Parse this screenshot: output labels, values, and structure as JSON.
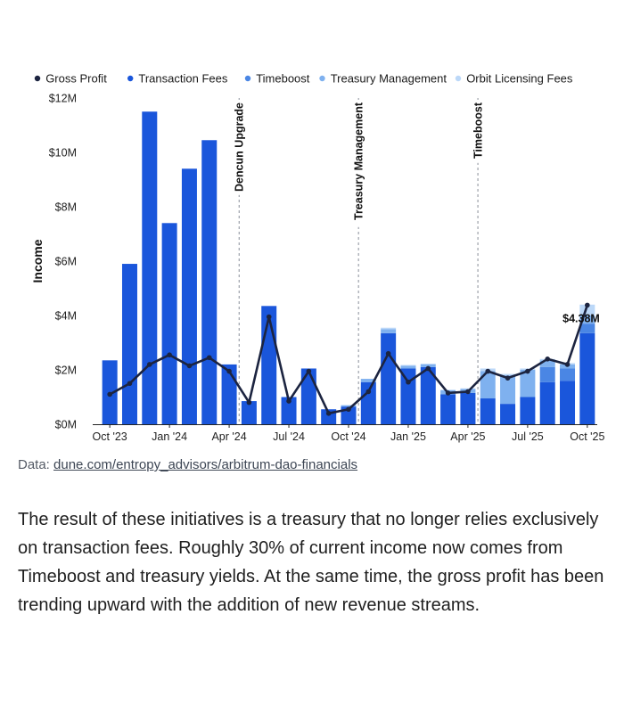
{
  "chart_data": {
    "type": "bar",
    "stacked": true,
    "ylabel": "Income",
    "ylim": [
      0,
      12
    ],
    "yticks": [
      0,
      2,
      4,
      6,
      8,
      10,
      12
    ],
    "ytick_labels": [
      "$0M",
      "$2M",
      "$4M",
      "$6M",
      "$8M",
      "$10M",
      "$12M"
    ],
    "xtick_labels": [
      {
        "label": "Oct '23",
        "index": 0
      },
      {
        "label": "Jan '24",
        "index": 3
      },
      {
        "label": "Apr '24",
        "index": 6
      },
      {
        "label": "Jul '24",
        "index": 9
      },
      {
        "label": "Oct '24",
        "index": 12
      },
      {
        "label": "Jan '25",
        "index": 15
      },
      {
        "label": "Apr '25",
        "index": 18
      },
      {
        "label": "Jul '25",
        "index": 21
      },
      {
        "label": "Oct '25",
        "index": 24
      }
    ],
    "categories": [
      "Oct 2023",
      "Nov 2023",
      "Dec 2023",
      "Jan 2024",
      "Feb 2024",
      "Mar 2024",
      "Apr 2024",
      "May 2024",
      "Jun 2024",
      "Jul 2024",
      "Aug 2024",
      "Sep 2024",
      "Oct 2024",
      "Nov 2024",
      "Dec 2024",
      "Jan 2025",
      "Feb 2025",
      "Mar 2025",
      "Apr 2025",
      "May 2025",
      "Jun 2025",
      "Jul 2025",
      "Aug 2025",
      "Sep 2025",
      "Oct 2025"
    ],
    "series": [
      {
        "name": "Transaction Fees",
        "color": "#1a56db",
        "values": [
          2.35,
          5.9,
          11.5,
          7.4,
          9.4,
          10.45,
          2.2,
          0.85,
          4.35,
          1.0,
          2.05,
          0.55,
          0.65,
          1.55,
          3.35,
          2.05,
          2.1,
          1.1,
          1.15,
          0.95,
          0.75,
          1.0,
          1.55,
          1.6,
          3.35
        ]
      },
      {
        "name": "Timeboost",
        "color": "#4a86e4",
        "values": [
          0,
          0,
          0,
          0,
          0,
          0,
          0,
          0,
          0,
          0,
          0,
          0,
          0,
          0,
          0,
          0,
          0,
          0,
          0,
          0,
          0,
          0,
          0.55,
          0.45,
          0.35
        ]
      },
      {
        "name": "Treasury Management",
        "color": "#7fb1ef",
        "values": [
          0,
          0,
          0,
          0,
          0,
          0,
          0,
          0,
          0,
          0,
          0,
          0,
          0.05,
          0.12,
          0.15,
          0.1,
          0.1,
          0.15,
          0.15,
          1.0,
          1.05,
          1.0,
          0.25,
          0.15,
          0.3
        ]
      },
      {
        "name": "Orbit Licensing Fees",
        "color": "#bcd8f8",
        "values": [
          0,
          0,
          0,
          0,
          0,
          0,
          0,
          0,
          0,
          0,
          0,
          0,
          0,
          0,
          0.05,
          0.03,
          0.03,
          0.02,
          0.02,
          0.1,
          0.05,
          0.05,
          0.05,
          0.05,
          0.4
        ]
      },
      {
        "name": "Gross Profit",
        "type": "line",
        "color": "#1c2440",
        "values": [
          1.1,
          1.5,
          2.2,
          2.55,
          2.15,
          2.45,
          1.95,
          0.8,
          3.95,
          0.85,
          1.95,
          0.4,
          0.55,
          1.2,
          2.6,
          1.55,
          2.05,
          1.15,
          1.2,
          1.95,
          1.7,
          1.95,
          2.4,
          2.2,
          4.38
        ]
      }
    ],
    "legend": [
      "Gross Profit",
      "Transaction Fees",
      "Timeboost",
      "Treasury Management",
      "Orbit Licensing Fees"
    ],
    "legend_position": "top",
    "annotations": [
      {
        "text": "Dencun Upgrade",
        "at_index": 6
      },
      {
        "text": "Treasury Management",
        "at_index": 12
      },
      {
        "text": "Timeboost",
        "at_index": 18
      }
    ],
    "last_value_label": "$4.38M"
  },
  "source": {
    "prefix": "Data: ",
    "link_text": "dune.com/entropy_advisors/arbitrum-dao-financials"
  },
  "body_text": "The result of these initiatives is a treasury that no longer relies exclusively on transaction fees. Roughly 30% of current income now comes from Timeboost and treasury yields. At the same time, the gross profit has been trending upward with the addition of new revenue streams."
}
